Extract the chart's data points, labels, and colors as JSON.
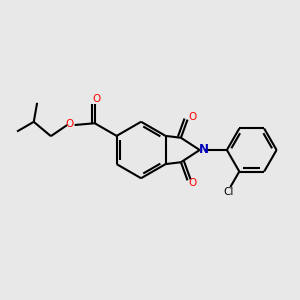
{
  "bg_color": "#e8e8e8",
  "bond_color": "#000000",
  "o_color": "#ff0000",
  "n_color": "#0000bb",
  "line_width": 1.5,
  "dbo": 0.012,
  "fig_width": 3.0,
  "fig_height": 3.0,
  "xlim": [
    0.0,
    1.0
  ],
  "ylim": [
    0.15,
    0.85
  ]
}
